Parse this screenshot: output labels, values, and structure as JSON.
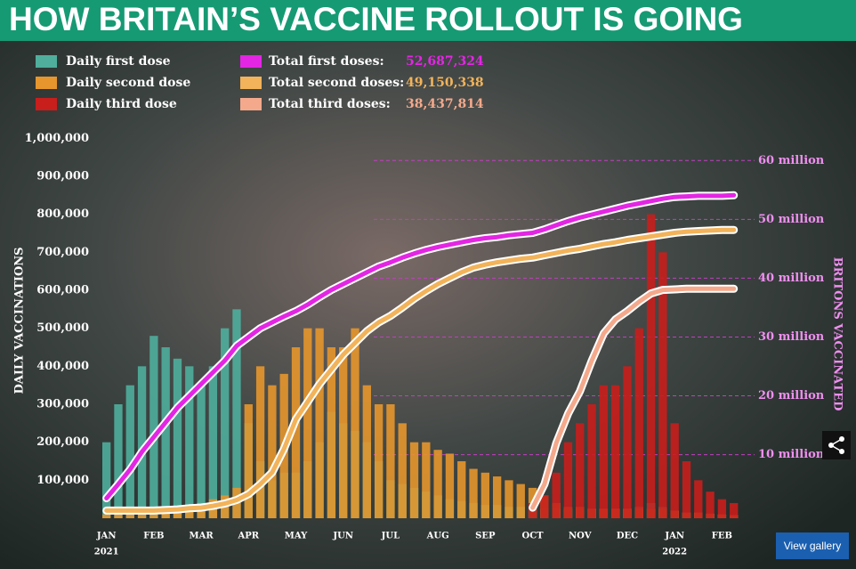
{
  "chart_data": {
    "type": "bar",
    "title": "HOW BRITAIN’S VACCINE ROLLOUT IS GOING",
    "y_label": "DAILY VACCINATIONS",
    "y2_label": "BRITONS VACCINATED",
    "x": [
      0,
      0.25,
      0.5,
      0.75,
      1,
      1.25,
      1.5,
      1.75,
      2,
      2.25,
      2.5,
      2.75,
      3,
      3.25,
      3.5,
      3.75,
      4,
      4.25,
      4.5,
      4.75,
      5,
      5.25,
      5.5,
      5.75,
      6,
      6.25,
      6.5,
      6.75,
      7,
      7.25,
      7.5,
      7.75,
      8,
      8.25,
      8.5,
      8.75,
      9,
      9.25,
      9.5,
      9.75,
      10,
      10.25,
      10.5,
      10.75,
      11,
      11.25,
      11.5,
      11.75,
      12,
      12.25,
      12.5,
      12.75,
      13,
      13.25
    ],
    "xlim": [
      -0.05,
      13.5
    ],
    "xticks": [
      {
        "value": 0,
        "label": "JAN"
      },
      {
        "value": 1,
        "label": "FEB"
      },
      {
        "value": 2,
        "label": "MAR"
      },
      {
        "value": 3,
        "label": "APR"
      },
      {
        "value": 4,
        "label": "MAY"
      },
      {
        "value": 5,
        "label": "JUN"
      },
      {
        "value": 6,
        "label": "JUL"
      },
      {
        "value": 7,
        "label": "AUG"
      },
      {
        "value": 8,
        "label": "SEP"
      },
      {
        "value": 9,
        "label": "OCT"
      },
      {
        "value": 10,
        "label": "NOV"
      },
      {
        "value": 11,
        "label": "DEC"
      },
      {
        "value": 12,
        "label": "JAN"
      },
      {
        "value": 13,
        "label": "FEB"
      }
    ],
    "year_labels": [
      {
        "value": 0,
        "label": "2021"
      },
      {
        "value": 12,
        "label": "2022"
      }
    ],
    "ylim": [
      0,
      1050000
    ],
    "yticks": [
      {
        "value": 100000,
        "label": "100,000"
      },
      {
        "value": 200000,
        "label": "200,000"
      },
      {
        "value": 300000,
        "label": "300,000"
      },
      {
        "value": 400000,
        "label": "400,000"
      },
      {
        "value": 500000,
        "label": "500,000"
      },
      {
        "value": 600000,
        "label": "600,000"
      },
      {
        "value": 700000,
        "label": "700,000"
      },
      {
        "value": 800000,
        "label": "800,000"
      },
      {
        "value": 900000,
        "label": "900,000"
      },
      {
        "value": 1000000,
        "label": "1,000,000"
      }
    ],
    "y2lim": [
      -800000,
      67000000
    ],
    "y2ticks": [
      {
        "value": 10000000,
        "label": "10 million"
      },
      {
        "value": 20000000,
        "label": "20 million"
      },
      {
        "value": 30000000,
        "label": "30 million"
      },
      {
        "value": 40000000,
        "label": "40 million"
      },
      {
        "value": 50000000,
        "label": "50 million"
      },
      {
        "value": 60000000,
        "label": "60 million"
      }
    ],
    "series": [
      {
        "name": "Daily first dose",
        "type": "bar",
        "color": "#4fae9c",
        "values": [
          200000,
          300000,
          350000,
          400000,
          480000,
          450000,
          420000,
          400000,
          350000,
          400000,
          500000,
          550000,
          250000,
          150000,
          100000,
          120000,
          120000,
          150000,
          200000,
          280000,
          250000,
          230000,
          200000,
          150000,
          100000,
          90000,
          80000,
          70000,
          60000,
          50000,
          45000,
          40000,
          35000,
          35000,
          30000,
          30000,
          25000,
          25000,
          25000,
          25000,
          25000,
          25000,
          25000,
          25000,
          25000,
          30000,
          40000,
          30000,
          20000,
          15000,
          15000,
          12000,
          10000,
          8000
        ]
      },
      {
        "name": "Daily second dose",
        "type": "bar",
        "color": "#e6962c",
        "values": [
          10000,
          10000,
          10000,
          10000,
          10000,
          15000,
          20000,
          30000,
          40000,
          50000,
          60000,
          80000,
          300000,
          400000,
          350000,
          380000,
          450000,
          500000,
          500000,
          450000,
          450000,
          500000,
          350000,
          300000,
          300000,
          250000,
          200000,
          200000,
          180000,
          170000,
          150000,
          130000,
          120000,
          110000,
          100000,
          90000,
          80000,
          60000,
          40000,
          30000,
          30000,
          25000,
          25000,
          25000,
          25000,
          25000,
          25000,
          25000,
          20000,
          15000,
          15000,
          12000,
          10000,
          8000
        ]
      },
      {
        "name": "Daily third dose",
        "type": "bar",
        "color": "#c81e1c",
        "values": [
          null,
          null,
          null,
          null,
          null,
          null,
          null,
          null,
          null,
          null,
          null,
          null,
          null,
          null,
          null,
          null,
          null,
          null,
          null,
          null,
          null,
          null,
          null,
          null,
          null,
          null,
          null,
          null,
          null,
          null,
          null,
          null,
          null,
          null,
          null,
          null,
          40000,
          60000,
          120000,
          200000,
          250000,
          300000,
          350000,
          350000,
          400000,
          500000,
          800000,
          700000,
          250000,
          150000,
          100000,
          70000,
          50000,
          40000
        ]
      },
      {
        "name": "Total first doses:",
        "type": "line",
        "axis": "y2",
        "color": "#e326e3",
        "total": {
          "value": 52687324,
          "label": "52,687,324"
        },
        "values": [
          2600000,
          5000000,
          7500000,
          10500000,
          13000000,
          15500000,
          18000000,
          20000000,
          22000000,
          24000000,
          26000000,
          28500000,
          30000000,
          31500000,
          32500000,
          33500000,
          34400000,
          35500000,
          36800000,
          38000000,
          39000000,
          40000000,
          41000000,
          42000000,
          42700000,
          43500000,
          44200000,
          44800000,
          45300000,
          45700000,
          46100000,
          46500000,
          46800000,
          47000000,
          47300000,
          47500000,
          47700000,
          48300000,
          49000000,
          49700000,
          50300000,
          50800000,
          51300000,
          51800000,
          52300000,
          52700000,
          53100000,
          53500000,
          53800000,
          53900000,
          54000000,
          54000000,
          54000000,
          54100000
        ]
      },
      {
        "name": "Total second doses:",
        "type": "line",
        "axis": "y2",
        "color": "#f2b35a",
        "total": {
          "value": 49150338,
          "label": "49,150,338"
        },
        "values": [
          500000,
          500000,
          500000,
          500000,
          500000,
          600000,
          700000,
          900000,
          1000000,
          1300000,
          1700000,
          2300000,
          3300000,
          5000000,
          7000000,
          11000000,
          16000000,
          19000000,
          22000000,
          24500000,
          27000000,
          29000000,
          31000000,
          32500000,
          33600000,
          35000000,
          36500000,
          37800000,
          39000000,
          40000000,
          41000000,
          41800000,
          42300000,
          42700000,
          43000000,
          43300000,
          43500000,
          43900000,
          44300000,
          44700000,
          45000000,
          45400000,
          45800000,
          46100000,
          46500000,
          46800000,
          47100000,
          47400000,
          47700000,
          47900000,
          48000000,
          48100000,
          48200000,
          48200000
        ]
      },
      {
        "name": "Total third doses:",
        "type": "line",
        "axis": "y2",
        "color": "#f4a98c",
        "total": {
          "value": 38437814,
          "label": "38,437,814"
        },
        "values": [
          null,
          null,
          null,
          null,
          null,
          null,
          null,
          null,
          null,
          null,
          null,
          null,
          null,
          null,
          null,
          null,
          null,
          null,
          null,
          null,
          null,
          null,
          null,
          null,
          null,
          null,
          null,
          null,
          null,
          null,
          null,
          null,
          null,
          null,
          null,
          null,
          1000000,
          5000000,
          12000000,
          17000000,
          20800000,
          26000000,
          30600000,
          33000000,
          34400000,
          36000000,
          37400000,
          38000000,
          38100000,
          38200000,
          38200000,
          38200000,
          38200000,
          38200000
        ]
      }
    ]
  },
  "ui": {
    "gallery_button": "View gallery"
  }
}
